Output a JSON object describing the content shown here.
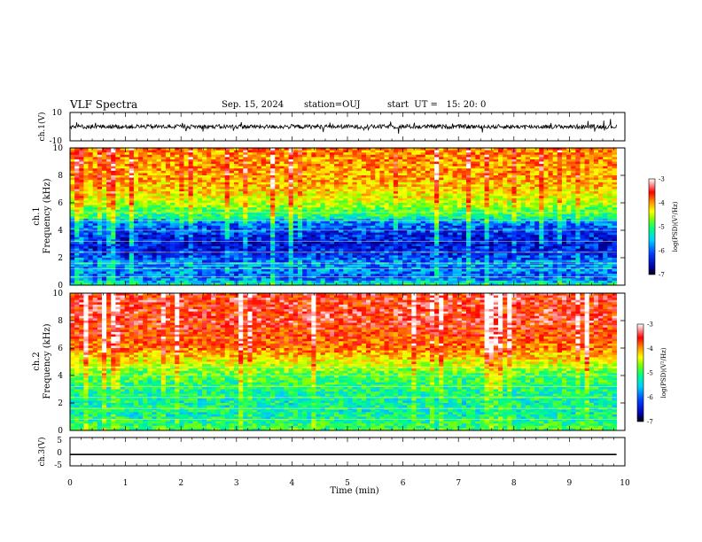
{
  "header": {
    "title": "VLF Spectra",
    "date": "Sep. 15, 2024",
    "station": "station=OUJ",
    "start_ut": "start  UT =   15: 20: 0"
  },
  "colorbar_label": "log(PSD)(V²/Hz)",
  "colors": {
    "colormap": [
      "#000033",
      "#0000aa",
      "#0030ff",
      "#00c8ff",
      "#00ff80",
      "#80ff00",
      "#ffff00",
      "#ff8000",
      "#ff0000",
      "#ffffff"
    ]
  },
  "chart_data": [
    {
      "type": "line",
      "name": "ch1-waveform",
      "ylabel": "ch.1(V)",
      "ylim": [
        -10,
        10
      ],
      "yticks": [
        "10",
        "-10"
      ],
      "x_range_min": [
        0,
        9.85
      ],
      "baseline": 0,
      "amplitude_typical": 1.5,
      "grid": false
    },
    {
      "type": "heatmap",
      "name": "ch1-spectrogram",
      "ylabel_channel": "ch.1",
      "ylabel": "Frequency (kHz)",
      "ylim": [
        0,
        10
      ],
      "yticks": [
        "0",
        "2",
        "4",
        "6",
        "8",
        "10"
      ],
      "x_range_min": [
        0,
        9.85
      ],
      "colorbar": {
        "label": "log(PSD)(V²/Hz)",
        "range": [
          -7,
          -3
        ],
        "ticks": [
          "-3",
          "-4",
          "-5",
          "-6",
          "-7"
        ]
      },
      "profile_khz_to_logpsd": [
        [
          0,
          -5.2
        ],
        [
          0.5,
          -6.0
        ],
        [
          1.5,
          -5.8
        ],
        [
          2.5,
          -6.3
        ],
        [
          3.5,
          -6.3
        ],
        [
          4.5,
          -5.9
        ],
        [
          5.0,
          -5.2
        ],
        [
          6.0,
          -4.6
        ],
        [
          7.0,
          -4.2
        ],
        [
          8.0,
          -4.0
        ],
        [
          10,
          -3.9
        ]
      ],
      "harmonic_lines_khz": [
        0.6,
        1.2,
        1.6,
        2.4,
        3.2,
        4.0,
        4.7,
        5.3
      ],
      "grid": false
    },
    {
      "type": "heatmap",
      "name": "ch2-spectrogram",
      "ylabel_channel": "ch.2",
      "ylabel": "Frequency (kHz)",
      "ylim": [
        0,
        10
      ],
      "yticks": [
        "0",
        "2",
        "4",
        "6",
        "8",
        "10"
      ],
      "x_range_min": [
        0,
        9.85
      ],
      "colorbar": {
        "label": "log(PSD)(V²/Hz)",
        "range": [
          -7,
          -3
        ],
        "ticks": [
          "-3",
          "-4",
          "-5",
          "-6",
          "-7"
        ]
      },
      "profile_khz_to_logpsd": [
        [
          0,
          -5.0
        ],
        [
          1,
          -5.3
        ],
        [
          2,
          -5.3
        ],
        [
          3,
          -5.2
        ],
        [
          4,
          -5.0
        ],
        [
          5,
          -4.4
        ],
        [
          6,
          -3.8
        ],
        [
          8,
          -3.5
        ],
        [
          10,
          -3.5
        ]
      ],
      "harmonic_lines_khz": [
        0.8,
        1.6,
        2.4,
        3.2,
        4.0,
        4.6
      ],
      "grid": false
    },
    {
      "type": "line",
      "name": "ch3-waveform",
      "ylabel": "ch.3(V)",
      "ylim": [
        -5,
        5
      ],
      "yticks": [
        "5",
        "0",
        "-5"
      ],
      "x_range_min": [
        0,
        9.85
      ],
      "baseline": -1,
      "grid": false
    }
  ],
  "xaxis": {
    "label": "Time (min)",
    "ticks": [
      "0",
      "1",
      "2",
      "3",
      "4",
      "5",
      "6",
      "7",
      "8",
      "9",
      "10"
    ]
  }
}
